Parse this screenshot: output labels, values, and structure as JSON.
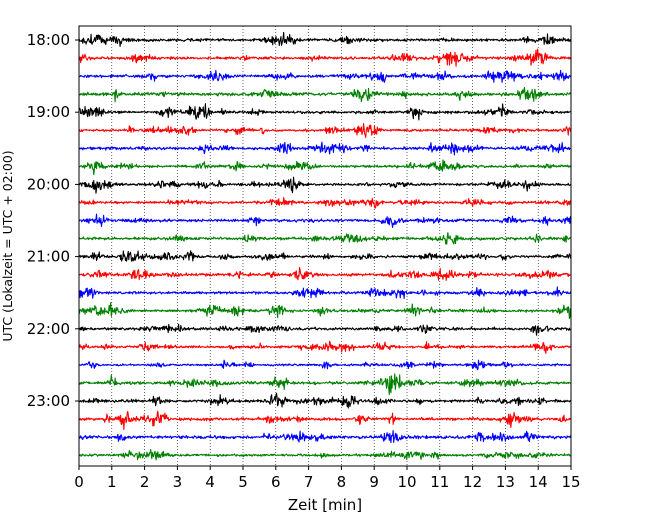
{
  "chart_data": {
    "type": "line",
    "title": "",
    "xlabel": "Zeit  [min]",
    "ylabel": "UTC (Lokalzeit = UTC + 02:00)",
    "xlim": [
      0,
      15
    ],
    "x_ticks": [
      "0",
      "1",
      "2",
      "3",
      "4",
      "5",
      "6",
      "7",
      "8",
      "9",
      "10",
      "11",
      "12",
      "13",
      "14",
      "15"
    ],
    "y_ticks": [
      "18:00",
      "19:00",
      "20:00",
      "21:00",
      "22:00",
      "23:00"
    ],
    "grid": "vertical dotted at each minute",
    "trace_interval_minutes": 15,
    "first_trace": "18:00",
    "trace_count": 24,
    "colors_cycle": [
      "#000000",
      "#ff0000",
      "#0000ff",
      "#008000"
    ],
    "series": [
      {
        "start": "18:00",
        "color": "#000000",
        "amplitude": 0.45
      },
      {
        "start": "18:15",
        "color": "#ff0000",
        "amplitude": 0.4
      },
      {
        "start": "18:30",
        "color": "#0000ff",
        "amplitude": 0.4
      },
      {
        "start": "18:45",
        "color": "#008000",
        "amplitude": 0.45
      },
      {
        "start": "19:00",
        "color": "#000000",
        "amplitude": 0.4
      },
      {
        "start": "19:15",
        "color": "#ff0000",
        "amplitude": 0.35
      },
      {
        "start": "19:30",
        "color": "#0000ff",
        "amplitude": 0.4
      },
      {
        "start": "19:45",
        "color": "#008000",
        "amplitude": 0.35
      },
      {
        "start": "20:00",
        "color": "#000000",
        "amplitude": 0.35
      },
      {
        "start": "20:15",
        "color": "#ff0000",
        "amplitude": 0.35
      },
      {
        "start": "20:30",
        "color": "#0000ff",
        "amplitude": 0.4
      },
      {
        "start": "20:45",
        "color": "#008000",
        "amplitude": 0.4
      },
      {
        "start": "21:00",
        "color": "#000000",
        "amplitude": 0.35
      },
      {
        "start": "21:15",
        "color": "#ff0000",
        "amplitude": 0.4
      },
      {
        "start": "21:30",
        "color": "#0000ff",
        "amplitude": 0.4
      },
      {
        "start": "21:45",
        "color": "#008000",
        "amplitude": 0.4
      },
      {
        "start": "22:00",
        "color": "#000000",
        "amplitude": 0.4
      },
      {
        "start": "22:15",
        "color": "#ff0000",
        "amplitude": 0.35
      },
      {
        "start": "22:30",
        "color": "#0000ff",
        "amplitude": 0.3
      },
      {
        "start": "22:45",
        "color": "#008000",
        "amplitude": 0.4
      },
      {
        "start": "23:00",
        "color": "#000000",
        "amplitude": 0.4
      },
      {
        "start": "23:15",
        "color": "#ff0000",
        "amplitude": 0.4
      },
      {
        "start": "23:30",
        "color": "#0000ff",
        "amplitude": 0.45
      },
      {
        "start": "23:45",
        "color": "#008000",
        "amplitude": 0.35
      }
    ]
  }
}
